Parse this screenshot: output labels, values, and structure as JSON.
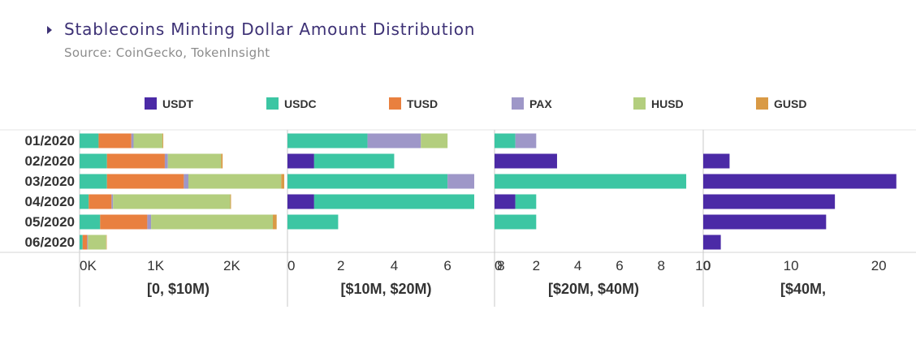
{
  "chart_data": {
    "type": "bar",
    "orientation": "horizontal",
    "stacked": true,
    "title": "Stablecoins Minting Dollar Amount Distribution",
    "subtitle": "Source: CoinGecko, TokenInsight",
    "legend_position": "top",
    "grid": false,
    "categories": [
      "01/2020",
      "02/2020",
      "03/2020",
      "04/2020",
      "05/2020",
      "06/2020"
    ],
    "series_info": [
      {
        "name": "USDT",
        "color": "#4b2aa6"
      },
      {
        "name": "USDC",
        "color": "#3cc6a3"
      },
      {
        "name": "TUSD",
        "color": "#e9803f"
      },
      {
        "name": "PAX",
        "color": "#9e97c8"
      },
      {
        "name": "HUSD",
        "color": "#b3ce7e"
      },
      {
        "name": "GUSD",
        "color": "#d99a45"
      }
    ],
    "panels": [
      {
        "label": "[0, $10M)",
        "xlim": [
          0,
          2700
        ],
        "ticks": [
          0,
          1000,
          2000
        ],
        "tick_labels": [
          "0K",
          "1K",
          "2K"
        ],
        "values": {
          "USDT": [
            0,
            0,
            0,
            0,
            0,
            0
          ],
          "USDC": [
            250,
            360,
            360,
            120,
            270,
            40
          ],
          "TUSD": [
            430,
            760,
            1010,
            300,
            620,
            60
          ],
          "PAX": [
            30,
            40,
            60,
            20,
            50,
            10
          ],
          "HUSD": [
            380,
            700,
            1220,
            1540,
            1600,
            240
          ],
          "GUSD": [
            10,
            20,
            40,
            10,
            50,
            5
          ]
        }
      },
      {
        "label": "[$10M, $20M)",
        "xlim": [
          0,
          7.7
        ],
        "ticks": [
          0,
          2,
          4,
          6,
          8
        ],
        "tick_labels": [
          "0",
          "2",
          "4",
          "6",
          "8"
        ],
        "values": {
          "USDT": [
            0,
            1.0,
            0,
            1.0,
            0,
            0
          ],
          "USDC": [
            3.0,
            3.0,
            6.0,
            6.0,
            1.9,
            0
          ],
          "TUSD": [
            0,
            0,
            0,
            0,
            0,
            0
          ],
          "PAX": [
            2.0,
            0,
            1.0,
            0,
            0,
            0
          ],
          "HUSD": [
            1.0,
            0,
            0,
            0,
            0,
            0
          ],
          "GUSD": [
            0,
            0,
            0,
            0,
            0,
            0
          ]
        }
      },
      {
        "label": "[$20M, $40M)",
        "xlim": [
          0,
          9.9
        ],
        "ticks": [
          0,
          2,
          4,
          6,
          8,
          10
        ],
        "tick_labels": [
          "0",
          "2",
          "4",
          "6",
          "8",
          "10"
        ],
        "values": {
          "USDT": [
            0,
            3.0,
            0,
            1.0,
            0,
            0
          ],
          "USDC": [
            1.0,
            0,
            9.2,
            1.0,
            2.0,
            0
          ],
          "TUSD": [
            0,
            0,
            0,
            0,
            0,
            0
          ],
          "PAX": [
            1.0,
            0,
            0,
            0,
            0,
            0
          ],
          "HUSD": [
            0,
            0,
            0,
            0,
            0,
            0
          ],
          "GUSD": [
            0,
            0,
            0,
            0,
            0,
            0
          ]
        }
      },
      {
        "label": "[$40M,",
        "xlim": [
          0,
          23.5
        ],
        "ticks": [
          0,
          10,
          20
        ],
        "tick_labels": [
          "0",
          "10",
          "20"
        ],
        "values": {
          "USDT": [
            0,
            3.0,
            22.0,
            15.0,
            14.0,
            2.0
          ],
          "USDC": [
            0,
            0,
            0,
            0,
            0,
            0
          ],
          "TUSD": [
            0,
            0,
            0,
            0,
            0,
            0
          ],
          "PAX": [
            0,
            0,
            0,
            0,
            0,
            0
          ],
          "HUSD": [
            0,
            0,
            0,
            0,
            0,
            0
          ],
          "GUSD": [
            0,
            0,
            0,
            0,
            0,
            0
          ]
        }
      }
    ]
  }
}
